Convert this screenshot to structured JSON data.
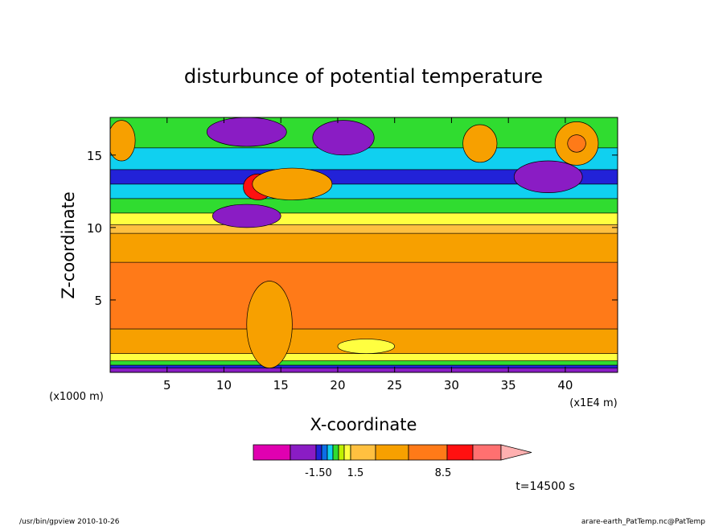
{
  "chart_data": {
    "type": "heatmap",
    "title": "disturbunce of potential temperature",
    "xlabel": "X-coordinate",
    "ylabel": "Z-coordinate",
    "x_unit_left": "(x1000 m)",
    "x_unit_right": "(x1E4 m)",
    "xlim": [
      0,
      44.6
    ],
    "ylim": [
      0,
      17.6
    ],
    "x_ticks": [
      5,
      10,
      15,
      20,
      25,
      30,
      35,
      40
    ],
    "y_ticks": [
      5,
      10,
      15
    ],
    "time_label": "t=14500 s",
    "colorbar": {
      "labels": [
        "-1.50",
        "1.5",
        "8.5"
      ],
      "colors": [
        "#e000b0",
        "#8a1cc4",
        "#2222d8",
        "#0c6ee6",
        "#10d0f0",
        "#30dc30",
        "#bff000",
        "#ffff40",
        "#ffc040",
        "#f7a000",
        "#ff7a18",
        "#ff1010",
        "#ff7070",
        "#ffb0b0"
      ]
    },
    "bands": [
      {
        "z_bottom": 0.0,
        "z_top": 0.3,
        "level": "#8a1cc4"
      },
      {
        "z_bottom": 0.3,
        "z_top": 0.5,
        "level": "#2222d8"
      },
      {
        "z_bottom": 0.5,
        "z_top": 0.8,
        "level": "#30dc30"
      },
      {
        "z_bottom": 0.8,
        "z_top": 1.3,
        "level": "#ffff40"
      },
      {
        "z_bottom": 1.3,
        "z_top": 3.0,
        "level": "#f7a000"
      },
      {
        "z_bottom": 3.0,
        "z_top": 7.6,
        "level": "#ff7a18"
      },
      {
        "z_bottom": 7.6,
        "z_top": 9.6,
        "level": "#f7a000"
      },
      {
        "z_bottom": 9.6,
        "z_top": 10.2,
        "level": "#ffc040"
      },
      {
        "z_bottom": 10.2,
        "z_top": 11.0,
        "level": "#ffff40"
      },
      {
        "z_bottom": 11.0,
        "z_top": 12.0,
        "level": "#30dc30"
      },
      {
        "z_bottom": 12.0,
        "z_top": 13.0,
        "level": "#10d0f0"
      },
      {
        "z_bottom": 13.0,
        "z_top": 14.0,
        "level": "#2222d8"
      },
      {
        "z_bottom": 14.0,
        "z_top": 15.5,
        "level": "#10d0f0"
      },
      {
        "z_bottom": 15.5,
        "z_top": 17.6,
        "level": "#30dc30"
      }
    ],
    "features": [
      {
        "cx": 13.0,
        "cz": 12.8,
        "rx": 1.3,
        "rz": 0.9,
        "level": "#ff1010"
      },
      {
        "cx": 16.0,
        "cz": 13.0,
        "rx": 3.5,
        "rz": 1.1,
        "level": "#f7a000"
      },
      {
        "cx": 12.0,
        "cz": 10.8,
        "rx": 3.0,
        "rz": 0.8,
        "level": "#8a1cc4"
      },
      {
        "cx": 12.0,
        "cz": 16.6,
        "rx": 3.5,
        "rz": 1.0,
        "level": "#8a1cc4"
      },
      {
        "cx": 20.5,
        "cz": 16.2,
        "rx": 2.7,
        "rz": 1.2,
        "level": "#8a1cc4"
      },
      {
        "cx": 38.5,
        "cz": 13.5,
        "rx": 3.0,
        "rz": 1.1,
        "level": "#8a1cc4"
      },
      {
        "cx": 1.0,
        "cz": 16.0,
        "rx": 1.2,
        "rz": 1.4,
        "level": "#f7a000"
      },
      {
        "cx": 32.5,
        "cz": 15.8,
        "rx": 1.5,
        "rz": 1.3,
        "level": "#f7a000"
      },
      {
        "cx": 41.0,
        "cz": 15.8,
        "rx": 1.9,
        "rz": 1.5,
        "level": "#f7a000"
      },
      {
        "cx": 41.0,
        "cz": 15.8,
        "rx": 0.8,
        "rz": 0.6,
        "level": "#ff7a18"
      },
      {
        "cx": 22.5,
        "cz": 1.8,
        "rx": 2.5,
        "rz": 0.5,
        "level": "#ffff40"
      },
      {
        "cx": 14.0,
        "cz": 3.3,
        "rx": 2.0,
        "rz": 3.0,
        "level": "#f7a000"
      }
    ]
  },
  "footer": {
    "left": "/usr/bin/gpview  2010-10-26",
    "right": "arare-earth_PatTemp.nc@PatTemp"
  }
}
